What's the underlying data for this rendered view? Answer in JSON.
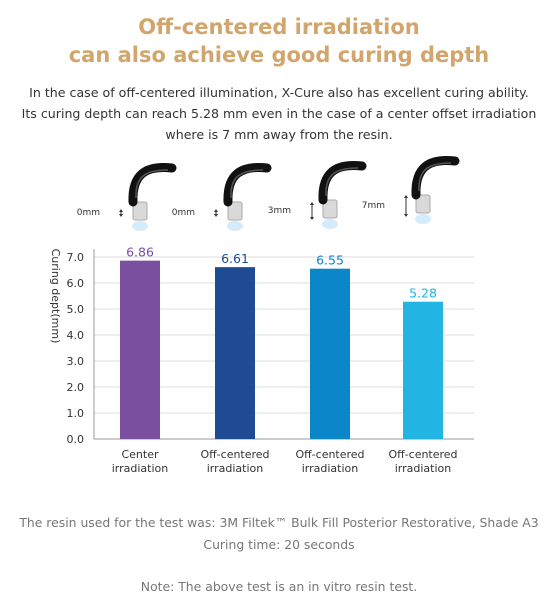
{
  "header": {
    "title_line1": "Off-centered irradiation",
    "title_line2": "can also achieve good curing depth",
    "intro": [
      "In the case of off-centered illumination, X-Cure also has excellent curing ability.",
      "Its curing depth can reach 5.28 mm even in the case of a center offset irradiation",
      "where is 7 mm away from the resin."
    ]
  },
  "illustrations": [
    {
      "offset": "0mm",
      "icon": "curing-light-tip-icon"
    },
    {
      "offset": "0mm",
      "icon": "curing-light-tip-icon"
    },
    {
      "offset": "3mm",
      "icon": "curing-light-tip-icon"
    },
    {
      "offset": "7mm",
      "icon": "curing-light-tip-icon"
    }
  ],
  "chart_data": {
    "type": "bar",
    "categories": [
      [
        "Center",
        "irradiation"
      ],
      [
        "Off-centered",
        "irradiation"
      ],
      [
        "Off-centered",
        "irradiation"
      ],
      [
        "Off-centered",
        "irradiation"
      ]
    ],
    "values": [
      6.86,
      6.61,
      6.55,
      5.28
    ],
    "value_labels": [
      "6.86",
      "6.61",
      "6.55",
      "5.28"
    ],
    "bar_colors": [
      "#7b4fa0",
      "#1f4a94",
      "#0a86c9",
      "#22b5e3"
    ],
    "label_colors": [
      "#7b4fa0",
      "#1f4a94",
      "#0a86c9",
      "#22b5e3"
    ],
    "ylabel": "Curing dept(mm)",
    "ylim": [
      0,
      7
    ],
    "yticks": [
      "0.0",
      "1.0",
      "2.0",
      "3.0",
      "4.0",
      "5.0",
      "6.0",
      "7.0"
    ],
    "grid": true
  },
  "footer": {
    "line1": "The resin used for the test was: 3M Filtek™ Bulk Fill Posterior Restorative, Shade A3",
    "line2": "Curing time: 20 seconds",
    "note": "Note: The above test is an in vitro resin test."
  },
  "colors": {
    "title": "#d1a56b",
    "text": "#333333",
    "footer": "#777777",
    "grid": "#dddddd"
  }
}
